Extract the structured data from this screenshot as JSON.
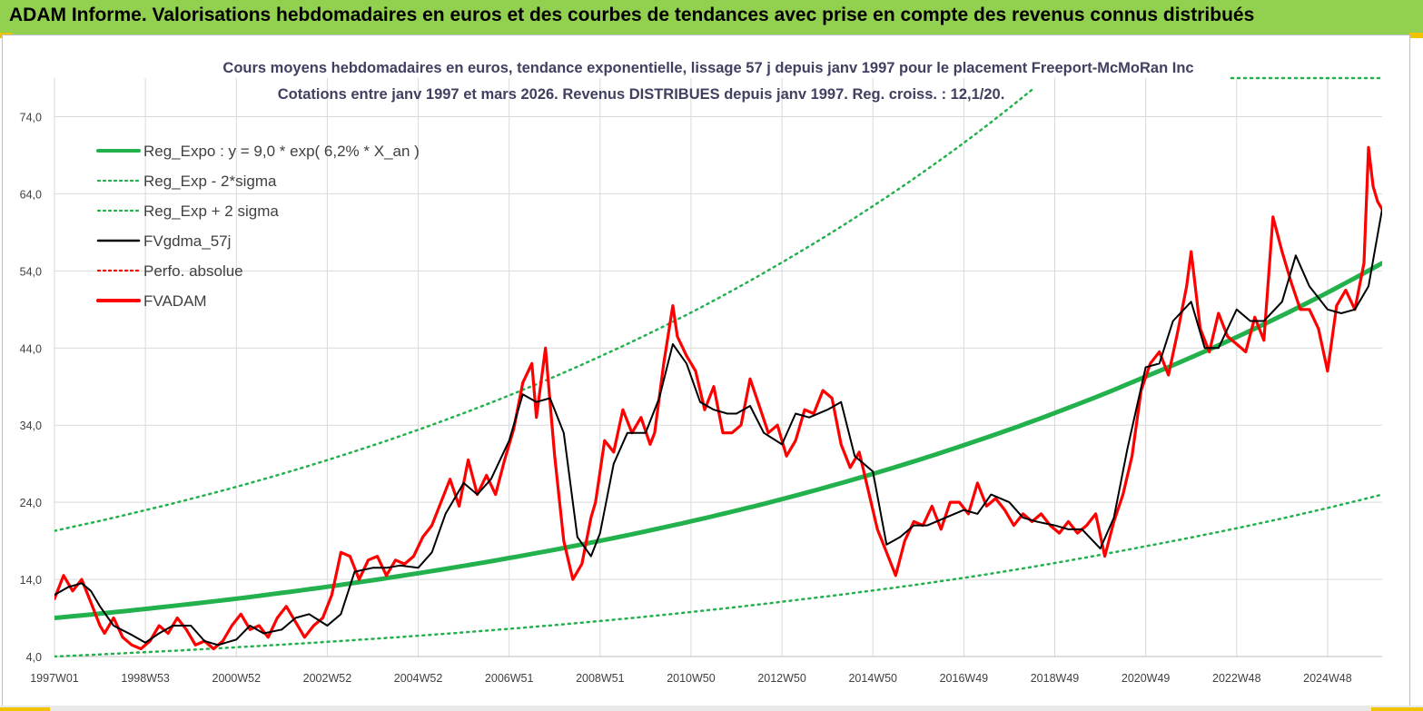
{
  "header": {
    "title": "ADAM Informe. Valorisations hebdomadaires en euros et des courbes de tendances avec prise en compte des revenus connus distribués"
  },
  "colors": {
    "header_bg": "#92d050",
    "trend": "#22b14c",
    "gdma": "#000000",
    "fvadam": "#ff0000",
    "perfo": "#ff0000",
    "grid": "#d9d9d9"
  },
  "chart_data": {
    "type": "line",
    "title": "Cours moyens hebdomadaires en euros, tendance exponentielle, lissage 57 j depuis janv 1997 pour le placement Freeport-McMoRan Inc",
    "subtitle": "Cotations entre janv 1997 et mars 2026. Revenus DISTRIBUES depuis janv 1997. Reg. croiss. : 12,1/20.",
    "xlabel": "",
    "ylabel": "",
    "x_range": [
      1997.0,
      2026.2
    ],
    "ylim": [
      4,
      79
    ],
    "y_ticks": [
      "4,0",
      "14,0",
      "24,0",
      "34,0",
      "44,0",
      "54,0",
      "64,0",
      "74,0"
    ],
    "y_tick_values": [
      4,
      14,
      24,
      34,
      44,
      54,
      64,
      74
    ],
    "x_ticks": [
      "1997W01",
      "1998W53",
      "2000W52",
      "2002W52",
      "2004W52",
      "2006W51",
      "2008W51",
      "2010W50",
      "2012W50",
      "2014W50",
      "2016W49",
      "2018W49",
      "2020W49",
      "2022W48",
      "2024W48"
    ],
    "x_tick_values": [
      1997.0,
      1999.0,
      2001.0,
      2003.0,
      2005.0,
      2007.0,
      2009.0,
      2011.0,
      2013.0,
      2015.0,
      2017.0,
      2019.0,
      2021.0,
      2023.0,
      2025.0
    ],
    "grid": true,
    "legend_position": "top-left",
    "legend": [
      {
        "name": "Reg_Expo : y = 9,0 * exp( 6,2% *  X_an )",
        "style": "solid-thick",
        "color": "#22b14c"
      },
      {
        "name": "Reg_Exp - 2*sigma",
        "style": "dotted",
        "color": "#22b14c"
      },
      {
        "name": "Reg_Exp + 2 sigma",
        "style": "dotted",
        "color": "#22b14c"
      },
      {
        "name": "FVgdma_57j",
        "style": "solid",
        "color": "#000000"
      },
      {
        "name": "Perfo. absolue",
        "style": "dotted",
        "color": "#ff0000"
      },
      {
        "name": "FVADAM",
        "style": "solid-thick",
        "color": "#ff0000"
      }
    ],
    "series": [
      {
        "name": "Reg_Expo : y = 9,0 * exp( 6,2% *  X_an )",
        "x": [
          1997.0,
          2001.0,
          2005.0,
          2009.0,
          2013.0,
          2017.0,
          2021.0,
          2026.2
        ],
        "values": [
          9.0,
          11.5,
          14.8,
          19.0,
          24.4,
          31.4,
          40.3,
          55.0
        ]
      },
      {
        "name": "Reg_Exp - 2*sigma",
        "x": [
          1997.0,
          2001.0,
          2005.0,
          2009.0,
          2013.0,
          2017.0,
          2021.0,
          2026.2
        ],
        "values": [
          4.0,
          5.2,
          6.7,
          8.6,
          11.1,
          14.2,
          18.3,
          25.0
        ]
      },
      {
        "name": "Reg_Exp + 2 sigma",
        "x": [
          1997.0,
          2001.0,
          2005.0,
          2009.0,
          2011.0,
          2013.0,
          2015.0,
          2017.0,
          2018.5
        ],
        "values": [
          20.3,
          26.0,
          33.4,
          42.9,
          48.6,
          55.1,
          62.4,
          70.6,
          77.5
        ]
      },
      {
        "name": "FVgdma_57j",
        "x": [
          1997.0,
          1997.3,
          1997.6,
          1997.8,
          1998.0,
          1998.3,
          1998.7,
          1999.0,
          1999.3,
          1999.6,
          2000.0,
          2000.3,
          2000.6,
          2001.0,
          2001.3,
          2001.6,
          2002.0,
          2002.3,
          2002.6,
          2003.0,
          2003.3,
          2003.6,
          2004.0,
          2004.3,
          2004.6,
          2005.0,
          2005.3,
          2005.6,
          2006.0,
          2006.3,
          2006.6,
          2007.0,
          2007.3,
          2007.6,
          2007.9,
          2008.2,
          2008.5,
          2008.8,
          2009.0,
          2009.3,
          2009.6,
          2010.0,
          2010.3,
          2010.6,
          2010.9,
          2011.2,
          2011.5,
          2011.8,
          2012.0,
          2012.3,
          2012.6,
          2013.0,
          2013.3,
          2013.6,
          2014.0,
          2014.3,
          2014.6,
          2015.0,
          2015.3,
          2015.6,
          2015.9,
          2016.2,
          2016.6,
          2017.0,
          2017.3,
          2017.6,
          2018.0,
          2018.3,
          2018.6,
          2019.0,
          2019.3,
          2019.6,
          2020.0,
          2020.3,
          2020.6,
          2021.0,
          2021.3,
          2021.6,
          2022.0,
          2022.3,
          2022.6,
          2023.0,
          2023.3,
          2023.6,
          2024.0,
          2024.3,
          2024.6,
          2025.0,
          2025.3,
          2025.6,
          2025.9,
          2026.2
        ],
        "values": [
          12.0,
          13.0,
          13.5,
          12.5,
          10.5,
          8.0,
          6.8,
          5.8,
          7.0,
          8.0,
          8.0,
          6.0,
          5.5,
          6.2,
          8.0,
          7.0,
          7.5,
          9.0,
          9.5,
          8.0,
          9.5,
          15.0,
          15.5,
          15.5,
          15.8,
          15.5,
          17.5,
          22.5,
          26.5,
          25.0,
          27.0,
          32.0,
          38.0,
          37.0,
          37.5,
          33.0,
          19.5,
          17.0,
          20.0,
          29.0,
          33.0,
          33.0,
          37.5,
          44.5,
          42.0,
          37.0,
          36.0,
          35.5,
          35.5,
          36.5,
          33.0,
          31.5,
          35.5,
          35.0,
          36.0,
          37.0,
          30.0,
          28.0,
          18.5,
          19.5,
          21.0,
          21.0,
          22.0,
          23.0,
          22.5,
          25.0,
          24.0,
          22.0,
          21.5,
          21.0,
          20.5,
          20.5,
          18.0,
          22.0,
          31.0,
          41.5,
          42.0,
          47.5,
          50.0,
          44.0,
          44.0,
          49.0,
          47.5,
          47.5,
          50.0,
          56.0,
          52.0,
          49.0,
          48.5,
          49.0,
          52.0,
          62.0
        ]
      },
      {
        "name": "FVADAM",
        "x": [
          1997.0,
          1997.2,
          1997.4,
          1997.6,
          1997.8,
          1998.0,
          1998.1,
          1998.3,
          1998.5,
          1998.7,
          1998.9,
          1999.1,
          1999.3,
          1999.5,
          1999.7,
          1999.9,
          2000.1,
          2000.3,
          2000.5,
          2000.7,
          2000.9,
          2001.1,
          2001.3,
          2001.5,
          2001.7,
          2001.9,
          2002.1,
          2002.3,
          2002.5,
          2002.7,
          2002.9,
          2003.1,
          2003.3,
          2003.5,
          2003.7,
          2003.9,
          2004.1,
          2004.3,
          2004.5,
          2004.7,
          2004.9,
          2005.1,
          2005.3,
          2005.5,
          2005.7,
          2005.9,
          2006.1,
          2006.3,
          2006.5,
          2006.7,
          2006.9,
          2007.1,
          2007.3,
          2007.5,
          2007.6,
          2007.8,
          2007.9,
          2008.0,
          2008.2,
          2008.4,
          2008.6,
          2008.8,
          2008.9,
          2009.1,
          2009.3,
          2009.5,
          2009.7,
          2009.9,
          2010.1,
          2010.2,
          2010.4,
          2010.6,
          2010.7,
          2010.9,
          2011.1,
          2011.3,
          2011.5,
          2011.7,
          2011.9,
          2012.1,
          2012.3,
          2012.5,
          2012.7,
          2012.9,
          2013.1,
          2013.3,
          2013.5,
          2013.7,
          2013.9,
          2014.1,
          2014.3,
          2014.5,
          2014.7,
          2014.9,
          2015.1,
          2015.3,
          2015.5,
          2015.7,
          2015.9,
          2016.1,
          2016.3,
          2016.5,
          2016.7,
          2016.9,
          2017.1,
          2017.3,
          2017.5,
          2017.7,
          2017.9,
          2018.1,
          2018.3,
          2018.5,
          2018.7,
          2018.9,
          2019.1,
          2019.3,
          2019.5,
          2019.7,
          2019.9,
          2020.1,
          2020.3,
          2020.5,
          2020.7,
          2020.9,
          2021.1,
          2021.3,
          2021.5,
          2021.7,
          2021.9,
          2022.0,
          2022.2,
          2022.4,
          2022.6,
          2022.8,
          2023.0,
          2023.2,
          2023.4,
          2023.6,
          2023.8,
          2024.0,
          2024.2,
          2024.4,
          2024.6,
          2024.8,
          2025.0,
          2025.2,
          2025.4,
          2025.6,
          2025.8,
          2025.9,
          2026.0,
          2026.1,
          2026.2
        ],
        "values": [
          11.5,
          14.5,
          12.5,
          14.0,
          11.0,
          8.0,
          7.0,
          9.0,
          6.5,
          5.5,
          5.0,
          6.0,
          8.0,
          7.0,
          9.0,
          7.5,
          5.5,
          6.0,
          5.0,
          6.0,
          8.0,
          9.5,
          7.5,
          8.0,
          6.5,
          9.0,
          10.5,
          8.5,
          6.5,
          8.0,
          9.0,
          12.0,
          17.5,
          17.0,
          14.0,
          16.5,
          17.0,
          14.5,
          16.5,
          16.0,
          17.0,
          19.5,
          21.0,
          24.0,
          27.0,
          23.5,
          29.5,
          25.0,
          27.5,
          25.0,
          29.5,
          33.5,
          39.5,
          42.0,
          35.0,
          44.0,
          37.0,
          30.0,
          19.0,
          14.0,
          16.0,
          22.0,
          24.0,
          32.0,
          30.5,
          36.0,
          33.0,
          35.0,
          31.5,
          33.0,
          42.0,
          49.5,
          45.5,
          43.0,
          41.0,
          36.0,
          39.0,
          33.0,
          33.0,
          34.0,
          40.0,
          36.5,
          33.0,
          34.0,
          30.0,
          32.0,
          36.0,
          35.5,
          38.5,
          37.5,
          31.5,
          28.5,
          30.5,
          25.5,
          20.5,
          17.5,
          14.5,
          19.0,
          21.5,
          21.0,
          23.5,
          20.5,
          24.0,
          24.0,
          22.5,
          26.5,
          23.5,
          24.5,
          23.0,
          21.0,
          22.5,
          21.5,
          22.5,
          21.0,
          20.0,
          21.5,
          20.0,
          21.0,
          22.5,
          17.0,
          21.5,
          25.0,
          30.0,
          38.5,
          42.0,
          43.5,
          40.5,
          46.0,
          52.0,
          56.5,
          46.5,
          43.5,
          48.5,
          45.5,
          44.5,
          43.5,
          48.0,
          45.0,
          61.0,
          56.5,
          52.5,
          49.0,
          49.0,
          46.5,
          41.0,
          49.5,
          51.5,
          49.0,
          55.0,
          70.0,
          65.0,
          63.0,
          62.0
        ]
      }
    ]
  }
}
